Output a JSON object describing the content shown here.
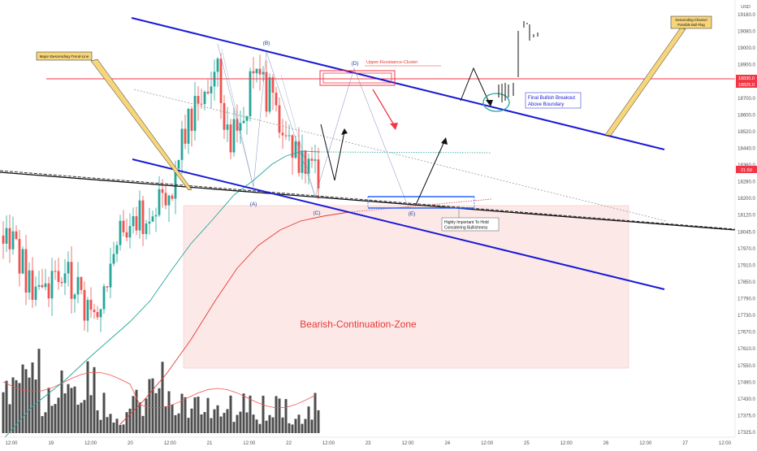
{
  "chart_data": {
    "type": "candlestick",
    "currency": "USD",
    "x_ticks": [
      "12:00",
      "19",
      "12:00",
      "20",
      "12:00",
      "21",
      "12:00",
      "22",
      "12:00",
      "23",
      "12:00",
      "24",
      "12:00",
      "25",
      "12:00",
      "26",
      "12:00",
      "27",
      "12:00"
    ],
    "y_ticks": [
      "19160.0",
      "19080.0",
      "19000.0",
      "18900.0",
      "18780.0",
      "18700.0",
      "18600.0",
      "18520.0",
      "18440.0",
      "18360.0",
      "18280.0",
      "18200.0",
      "18120.0",
      "18045.0",
      "17970.0",
      "17910.0",
      "17850.0",
      "17790.0",
      "17730.0",
      "17670.0",
      "17610.0",
      "17550.0",
      "17490.0",
      "17430.0",
      "17375.0",
      "17325.0"
    ],
    "price_badges": [
      {
        "text": "18830.0",
        "color": "#f23645"
      },
      {
        "text": "18825.0",
        "color": "#f23645"
      },
      {
        "text": "21:50",
        "color": "#f23645"
      }
    ],
    "series": [
      {
        "kind": "candles",
        "up_color": "#26a69a",
        "down_color": "#ef5350"
      },
      {
        "kind": "sma_fast",
        "color": "#26a69a"
      },
      {
        "kind": "sma_slow",
        "color": "#e53935"
      },
      {
        "kind": "volume",
        "color": "#333333"
      }
    ],
    "wave_labels": [
      "(A)",
      "(B)",
      "(C)",
      "(D)",
      "(E)"
    ],
    "annotations": {
      "major_trendline": "Major-Descending-Trend-Line",
      "channel_callout": "Descending-Channel\nPossible Bull-Flag",
      "resistance": "Upper-Resistance-Cluster",
      "breakout": "Final Bullish Breakout\nAbove Boundary",
      "support": "Highly Important To Hold\nConsidering Bullishness",
      "bear_zone": "Bearish-Continuation-Zone"
    },
    "colors": {
      "channel": "#1a1ad6",
      "resistance": "#f23645",
      "zone_fill": "#fde8e8",
      "callout_fill": "#f7d57a"
    }
  }
}
